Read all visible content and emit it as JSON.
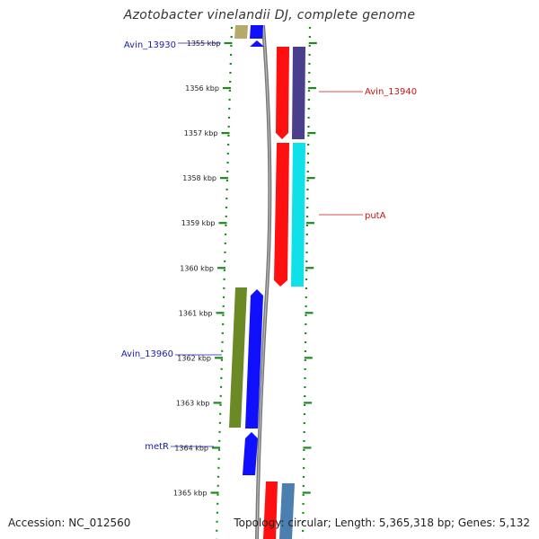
{
  "title": "Azotobacter vinelandii DJ, complete genome",
  "footer": {
    "accession": "Accession: NC_012560",
    "summary": "Topology: circular; Length: 5,365,318 bp; Genes: 5,132"
  },
  "scale": {
    "labels": [
      "1355 kbp",
      "1356 kbp",
      "1357 kbp",
      "1358 kbp",
      "1359 kbp",
      "1360 kbp",
      "1361 kbp",
      "1362 kbp",
      "1363 kbp",
      "1364 kbp",
      "1365 kbp"
    ]
  },
  "genes": [
    {
      "label": "Avin_13930",
      "color": "#1a1ab4"
    },
    {
      "label": "Avin_13940",
      "color": "#cc1111"
    },
    {
      "label": "putA",
      "color": "#cc1111"
    },
    {
      "label": "Avin_13960",
      "color": "#1a1ab4"
    },
    {
      "label": "metR",
      "color": "#1a1ab4"
    }
  ],
  "colors": {
    "tick": "#1a8a1a",
    "backbone": "#777777",
    "tan": "#b5aa6a",
    "blue": "#1010ff",
    "red": "#ff1010",
    "slate": "#4a3f8c",
    "cyan": "#10e0e8",
    "olive": "#6b8a25",
    "steel": "#4a7fb0"
  }
}
